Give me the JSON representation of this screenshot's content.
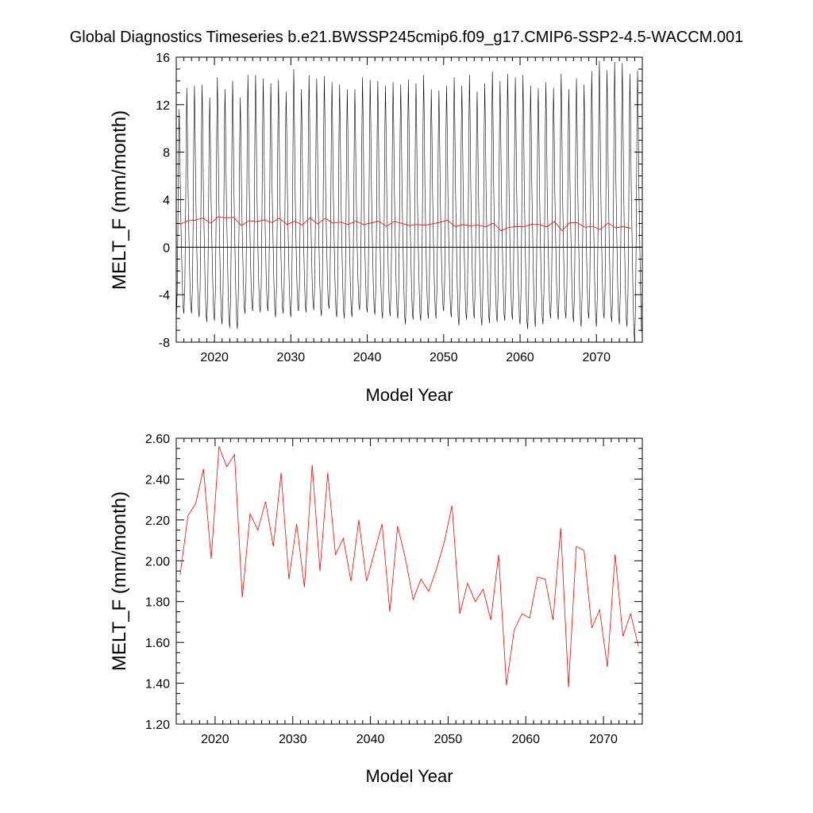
{
  "title": "Global Diagnostics Timeseries b.e21.BWSSP245cmip6.f09_g17.CMIP6-SSP2-4.5-WACCM.001",
  "colors": {
    "monthly": "#000000",
    "annual": "#ff0000",
    "background": "#ffffff"
  },
  "chart_data": [
    {
      "type": "line",
      "xlabel": "Model Year",
      "ylabel": "MELT_F (mm/month)",
      "xlim": [
        2015,
        2076
      ],
      "ylim": [
        -8,
        16
      ],
      "xticks": [
        2020,
        2030,
        2040,
        2050,
        2060,
        2070
      ],
      "yticks": [
        -8,
        -4,
        0,
        4,
        8,
        12,
        16
      ],
      "ytick_labels": [
        "-8",
        "-4",
        "0",
        "4",
        "8",
        "12",
        "16"
      ],
      "zero_line": true,
      "series": [
        {
          "role": "monthly",
          "seasonal_max": [
            11.6,
            13.4,
            13.6,
            13.7,
            12.6,
            14.3,
            13.3,
            14.0,
            12.6,
            14.5,
            14.5,
            14.2,
            13.8,
            14.1,
            13.1,
            15.0,
            13.3,
            14.5,
            14.2,
            14.4,
            13.9,
            13.7,
            13.3,
            13.3,
            14.3,
            14.1,
            14.0,
            13.6,
            13.9,
            13.7,
            14.1,
            13.8,
            14.5,
            13.3,
            13.2,
            13.6,
            14.3,
            13.6,
            14.5,
            13.1,
            13.8,
            14.8,
            14.0,
            14.6,
            14.3,
            14.5,
            13.6,
            13.4,
            13.9,
            13.4,
            14.6,
            13.3,
            14.2,
            13.7,
            14.8,
            15.7,
            14.9,
            15.6,
            15.5,
            14.6,
            14.9
          ],
          "seasonal_min": [
            -6.3,
            -5.6,
            -5.6,
            -5.9,
            -6.3,
            -6.2,
            -6.5,
            -6.8,
            -6.9,
            -5.6,
            -5.4,
            -5.5,
            -5.4,
            -5.9,
            -5.6,
            -5.9,
            -5.4,
            -5.5,
            -5.3,
            -5.8,
            -5.2,
            -5.9,
            -6.0,
            -5.9,
            -5.3,
            -5.5,
            -5.7,
            -6.0,
            -5.8,
            -6.0,
            -6.5,
            -6.1,
            -6.2,
            -6.0,
            -6.0,
            -5.4,
            -5.9,
            -6.6,
            -6.1,
            -6.0,
            -6.6,
            -6.4,
            -6.3,
            -6.2,
            -6.1,
            -6.5,
            -6.9,
            -6.7,
            -6.5,
            -6.0,
            -6.1,
            -6.0,
            -6.3,
            -6.7,
            -6.0,
            -6.7,
            -6.0,
            -6.3,
            -6.5,
            -6.7,
            -7.9
          ]
        },
        {
          "role": "annual",
          "x": [
            2015.5,
            2016.5,
            2017.5,
            2018.5,
            2019.5,
            2020.5,
            2021.5,
            2022.5,
            2023.5,
            2024.5,
            2025.5,
            2026.5,
            2027.5,
            2028.5,
            2029.5,
            2030.5,
            2031.5,
            2032.5,
            2033.5,
            2034.5,
            2035.5,
            2036.5,
            2037.5,
            2038.5,
            2039.5,
            2040.5,
            2041.5,
            2042.5,
            2043.5,
            2044.5,
            2045.5,
            2046.5,
            2047.5,
            2048.5,
            2049.5,
            2050.5,
            2051.5,
            2052.5,
            2053.5,
            2054.5,
            2055.5,
            2056.5,
            2057.5,
            2058.5,
            2059.5,
            2060.5,
            2061.5,
            2062.5,
            2063.5,
            2064.5,
            2065.5,
            2066.5,
            2067.5,
            2068.5,
            2069.5,
            2070.5,
            2071.5,
            2072.5,
            2073.5,
            2074.5
          ],
          "y": [
            1.93,
            2.22,
            2.28,
            2.45,
            2.01,
            2.56,
            2.46,
            2.52,
            1.82,
            2.23,
            2.15,
            2.29,
            2.07,
            2.43,
            1.91,
            2.18,
            1.87,
            2.47,
            1.95,
            2.43,
            2.03,
            2.11,
            1.9,
            2.2,
            1.9,
            2.04,
            2.18,
            1.75,
            2.17,
            2.01,
            1.81,
            1.91,
            1.85,
            1.96,
            2.09,
            2.27,
            1.74,
            1.89,
            1.8,
            1.86,
            1.71,
            2.03,
            1.39,
            1.66,
            1.74,
            1.72,
            1.92,
            1.91,
            1.71,
            2.16,
            1.38,
            2.07,
            2.05,
            1.67,
            1.76,
            1.48,
            2.03,
            1.63,
            1.74,
            1.58
          ]
        }
      ]
    },
    {
      "type": "line",
      "xlabel": "Model Year",
      "ylabel": "MELT_F (mm/month)",
      "xlim": [
        2015,
        2075
      ],
      "ylim": [
        1.2,
        2.6
      ],
      "xticks": [
        2020,
        2030,
        2040,
        2050,
        2060,
        2070
      ],
      "yticks": [
        1.2,
        1.4,
        1.6,
        1.8,
        2.0,
        2.2,
        2.4,
        2.6
      ],
      "ytick_labels": [
        "1.20",
        "1.40",
        "1.60",
        "1.80",
        "2.00",
        "2.20",
        "2.40",
        "2.60"
      ],
      "series": [
        {
          "role": "annual",
          "same_as": "annual"
        }
      ]
    }
  ]
}
